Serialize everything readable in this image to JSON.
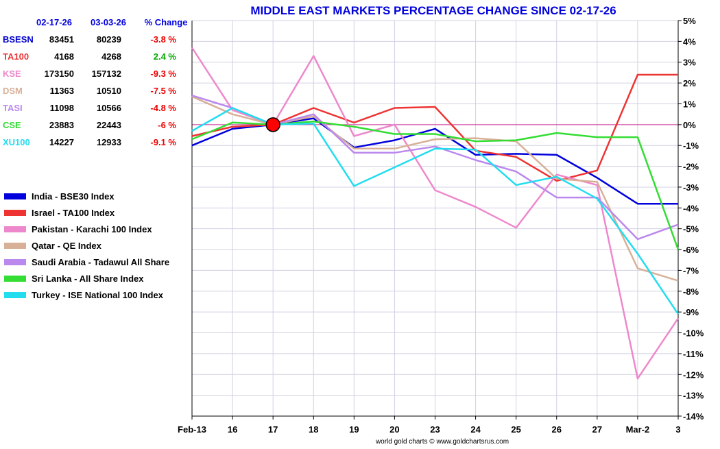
{
  "chart_data": {
    "type": "line",
    "title": "MIDDLE EAST MARKETS PERCENTAGE CHANGE SINCE 02-17-26",
    "credit": "world gold charts © www.goldchartsrus.com",
    "xlabel": "",
    "ylabel": "",
    "categories": [
      "Feb-13",
      "16",
      "17",
      "18",
      "19",
      "20",
      "23",
      "24",
      "25",
      "26",
      "27",
      "Mar-2",
      "3"
    ],
    "ylim": [
      -14,
      5
    ],
    "y_ticks": [
      5,
      4,
      3,
      2,
      1,
      0,
      -1,
      -2,
      -3,
      -4,
      -5,
      -6,
      -7,
      -8,
      -9,
      -10,
      -11,
      -12,
      -13,
      -14
    ],
    "y_tick_labels": [
      "5%",
      "4%",
      "3%",
      "2%",
      "1%",
      "0%",
      "-1%",
      "-2%",
      "-3%",
      "-4%",
      "-5%",
      "-6%",
      "-7%",
      "-8%",
      "-9%",
      "-10%",
      "-11%",
      "-12%",
      "-13%",
      "-14%"
    ],
    "grid": true,
    "reference_line": 0,
    "marker": {
      "category": "17",
      "value": 0,
      "color": "#ff0000"
    },
    "legend_position": "left",
    "series": [
      {
        "name": "India - BSE30 Index",
        "color": "#0000dd",
        "values": [
          -1.0,
          -0.2,
          0.0,
          0.3,
          -1.1,
          -0.75,
          -0.2,
          -1.45,
          -1.4,
          -1.45,
          -2.55,
          -3.8,
          -3.8
        ]
      },
      {
        "name": "Israel - TA100 Index",
        "color": "#ee3333",
        "values": [
          -0.55,
          -0.1,
          0.0,
          0.8,
          0.1,
          0.8,
          0.85,
          -1.25,
          -1.55,
          -2.7,
          -2.2,
          2.4,
          2.4
        ]
      },
      {
        "name": "Pakistan - Karachi 100 Index",
        "color": "#ee88cc",
        "values": [
          3.7,
          0.7,
          0.0,
          3.3,
          -0.55,
          0.0,
          -3.15,
          -3.95,
          -4.95,
          -2.4,
          -2.9,
          -12.2,
          -9.3
        ]
      },
      {
        "name": "Qatar - QE Index",
        "color": "#d8b098",
        "values": [
          1.35,
          0.5,
          0.0,
          0.4,
          -1.15,
          -1.15,
          -0.7,
          -0.65,
          -0.8,
          -2.6,
          -2.75,
          -6.9,
          -7.5
        ]
      },
      {
        "name": "Saudi Arabia - Tadawul All Share",
        "color": "#bb88ee",
        "values": [
          1.4,
          0.8,
          0.0,
          0.5,
          -1.35,
          -1.35,
          -1.05,
          -1.7,
          -2.25,
          -3.5,
          -3.5,
          -5.5,
          -4.8
        ]
      },
      {
        "name": "Sri Lanka - All Share Index",
        "color": "#33dd33",
        "values": [
          -0.7,
          0.1,
          0.0,
          0.15,
          -0.1,
          -0.45,
          -0.45,
          -0.8,
          -0.75,
          -0.4,
          -0.6,
          -0.6,
          -6.0
        ]
      },
      {
        "name": "Turkey - ISE National 100 Index",
        "color": "#22ddee",
        "values": [
          -0.3,
          0.8,
          0.0,
          0.05,
          -2.95,
          -2.05,
          -1.15,
          -1.2,
          -2.9,
          -2.5,
          -3.55,
          -6.2,
          -9.1
        ]
      }
    ]
  },
  "summary_table": {
    "header": {
      "date1": "02-17-26",
      "date2": "03-03-26",
      "change": "% Change"
    },
    "header_color": "#0000dd",
    "rows": [
      {
        "symbol": "BSESN",
        "v1": "83451",
        "v2": "80239",
        "change": "-3.8 %",
        "color": "#0000cc",
        "change_color": "#ee0000"
      },
      {
        "symbol": "TA100",
        "v1": "4168",
        "v2": "4268",
        "change": "2.4 %",
        "color": "#ee3333",
        "change_color": "#00aa00"
      },
      {
        "symbol": "KSE",
        "v1": "173150",
        "v2": "157132",
        "change": "-9.3 %",
        "color": "#ee88cc",
        "change_color": "#ee0000"
      },
      {
        "symbol": "DSM",
        "v1": "11363",
        "v2": "10510",
        "change": "-7.5 %",
        "color": "#d8b098",
        "change_color": "#ee0000"
      },
      {
        "symbol": "TASI",
        "v1": "11098",
        "v2": "10566",
        "change": "-4.8 %",
        "color": "#bb88ee",
        "change_color": "#ee0000"
      },
      {
        "symbol": "CSE",
        "v1": "23883",
        "v2": "22443",
        "change": "-6 %",
        "color": "#33dd33",
        "change_color": "#ee0000"
      },
      {
        "symbol": "XU100",
        "v1": "14227",
        "v2": "12933",
        "change": "-9.1 %",
        "color": "#22ddee",
        "change_color": "#ee0000"
      }
    ]
  }
}
